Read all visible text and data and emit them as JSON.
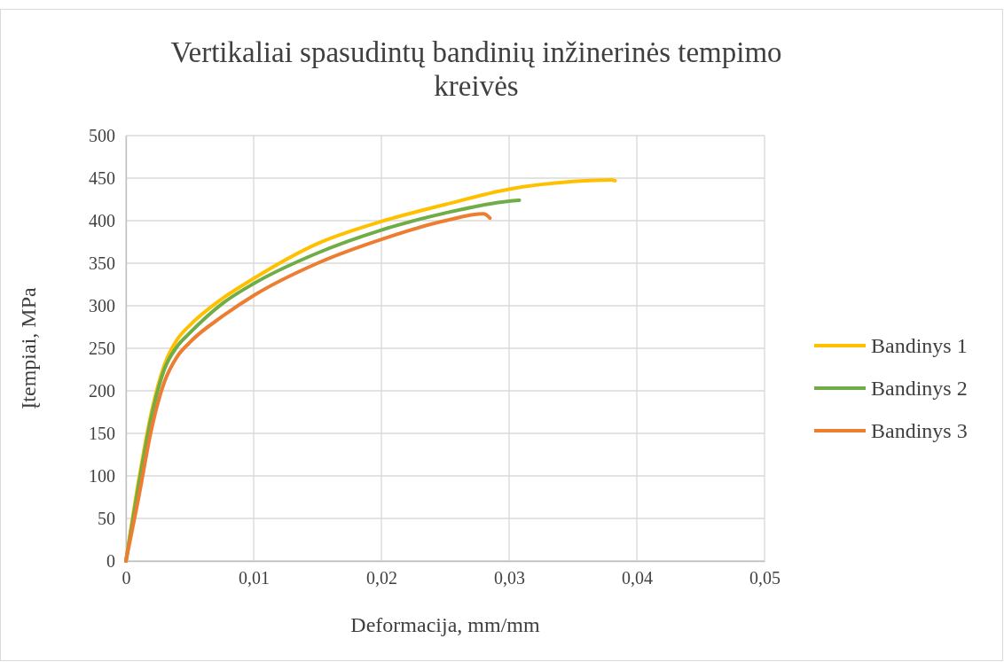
{
  "chart_data": {
    "type": "line",
    "title": "Vertikaliai spasudintų bandinių inžinerinės tempimo kreivės",
    "xlabel": "Deformacija, mm/mm",
    "ylabel": "Įtempiai, MPa",
    "xlim": [
      0,
      0.05
    ],
    "xticks": [
      0,
      {
        "value": 0.01,
        "label": "0,01"
      },
      {
        "value": 0.02,
        "label": "0,02"
      },
      {
        "value": 0.03,
        "label": "0,03"
      },
      {
        "value": 0.04,
        "label": "0,04"
      },
      {
        "value": 0.05,
        "label": "0,05"
      }
    ],
    "ylim": [
      0,
      500
    ],
    "yticks": [
      0,
      50,
      100,
      150,
      200,
      250,
      300,
      350,
      400,
      450,
      500
    ],
    "grid": true,
    "legend": "right",
    "marker": "none",
    "line_style": "solid",
    "series": [
      {
        "name": "Bandinys 1",
        "color": "#ffc000",
        "x": [
          0,
          0.001,
          0.002,
          0.003,
          0.004,
          0.005,
          0.0075,
          0.01,
          0.015,
          0.02,
          0.025,
          0.03,
          0.035,
          0.038,
          0.0383
        ],
        "values": [
          0,
          95,
          175,
          230,
          260,
          277,
          308,
          332,
          373,
          399,
          419,
          437,
          446,
          448,
          447
        ]
      },
      {
        "name": "Bandinys 2",
        "color": "#70ad47",
        "x": [
          0,
          0.001,
          0.002,
          0.003,
          0.004,
          0.005,
          0.0075,
          0.01,
          0.015,
          0.02,
          0.025,
          0.03,
          0.0308
        ],
        "values": [
          0,
          90,
          170,
          225,
          252,
          268,
          302,
          326,
          362,
          389,
          409,
          423,
          424
        ]
      },
      {
        "name": "Bandinys 3",
        "color": "#ed7d31",
        "x": [
          0,
          0.001,
          0.002,
          0.003,
          0.004,
          0.005,
          0.0075,
          0.01,
          0.015,
          0.02,
          0.025,
          0.028,
          0.0285
        ],
        "values": [
          0,
          75,
          155,
          210,
          240,
          257,
          287,
          312,
          350,
          378,
          400,
          408,
          403
        ]
      }
    ]
  }
}
